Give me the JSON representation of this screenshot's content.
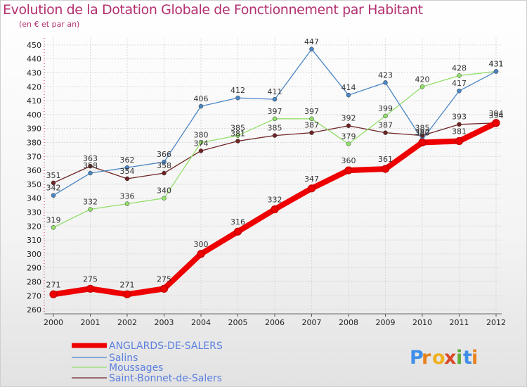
{
  "chart_data": {
    "type": "line",
    "title": "Evolution de la Dotation Globale de Fonctionnement par Habitant",
    "subtitle": "(en € et par an)",
    "x": [
      "2000",
      "2001",
      "2002",
      "2003",
      "2004",
      "2005",
      "2006",
      "2007",
      "2008",
      "2009",
      "2010",
      "2011",
      "2012"
    ],
    "y_ticks": [
      260,
      270,
      280,
      290,
      300,
      310,
      320,
      330,
      340,
      350,
      360,
      370,
      380,
      390,
      400,
      410,
      420,
      430,
      440,
      450
    ],
    "ylim": [
      257,
      455
    ],
    "grid": true,
    "legend_position": "bottom-left",
    "series": [
      {
        "name": "ANGLARDS-DE-SALERS",
        "color": "#ee0000",
        "values": [
          271,
          275,
          271,
          275,
          300,
          316,
          332,
          347,
          360,
          361,
          380,
          381,
          394
        ]
      },
      {
        "name": "Salins",
        "color": "#4a86c5",
        "values": [
          342,
          358,
          362,
          366,
          406,
          412,
          411,
          447,
          414,
          423,
          382,
          417,
          431
        ]
      },
      {
        "name": "Moussages",
        "color": "#92df6a",
        "values": [
          319,
          332,
          336,
          340,
          380,
          385,
          397,
          397,
          379,
          399,
          420,
          428,
          431
        ]
      },
      {
        "name": "Saint-Bonnet-de-Salers",
        "color": "#6e2424",
        "values": [
          351,
          363,
          354,
          358,
          374,
          381,
          385,
          387,
          392,
          387,
          385,
          393,
          394
        ]
      }
    ]
  },
  "logo": {
    "letters": [
      "P",
      "r",
      "o",
      "x",
      "i",
      "t",
      "i"
    ],
    "colors": [
      "#3f8ee8",
      "#e8821e",
      "#f0b020",
      "#d94a2a",
      "#5fae3a",
      "#3f8ee8",
      "#e8821e"
    ]
  }
}
